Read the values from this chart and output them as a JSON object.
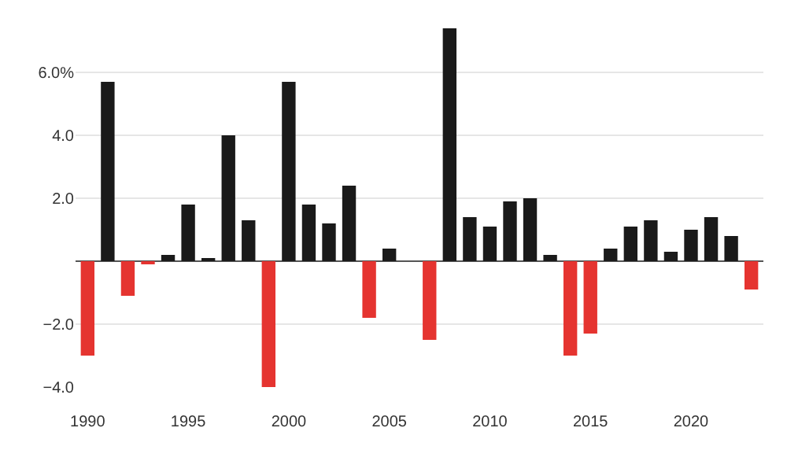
{
  "chart_data": {
    "type": "bar",
    "x": [
      1990,
      1991,
      1992,
      1993,
      1994,
      1995,
      1996,
      1997,
      1998,
      1999,
      2000,
      2001,
      2002,
      2003,
      2004,
      2005,
      2006,
      2007,
      2008,
      2009,
      2010,
      2011,
      2012,
      2013,
      2014,
      2015,
      2016,
      2017,
      2018,
      2019,
      2020,
      2021,
      2022,
      2023
    ],
    "values": [
      -3.0,
      5.7,
      -1.1,
      -0.1,
      0.2,
      1.8,
      0.1,
      4.0,
      1.3,
      -4.0,
      5.7,
      1.8,
      1.2,
      2.4,
      -1.8,
      0.4,
      0,
      -2.5,
      7.4,
      1.4,
      1.1,
      1.9,
      2.0,
      0.2,
      -3.0,
      -2.3,
      0.4,
      1.1,
      1.3,
      0.3,
      1.0,
      1.4,
      0.8,
      -0.9
    ],
    "colors": [
      "#e53430",
      "#1a1a1a",
      "#e53430",
      "#e53430",
      "#1a1a1a",
      "#1a1a1a",
      "#1a1a1a",
      "#1a1a1a",
      "#1a1a1a",
      "#e53430",
      "#1a1a1a",
      "#1a1a1a",
      "#1a1a1a",
      "#1a1a1a",
      "#e53430",
      "#1a1a1a",
      "#1a1a1a",
      "#e53430",
      "#1a1a1a",
      "#1a1a1a",
      "#1a1a1a",
      "#1a1a1a",
      "#1a1a1a",
      "#1a1a1a",
      "#e53430",
      "#e53430",
      "#1a1a1a",
      "#1a1a1a",
      "#1a1a1a",
      "#1a1a1a",
      "#1a1a1a",
      "#1a1a1a",
      "#1a1a1a",
      "#e53430"
    ],
    "xlim": [
      1989.4,
      2023.6
    ],
    "xticks": [
      1990,
      1995,
      2000,
      2005,
      2010,
      2015,
      2020
    ],
    "ylim": [
      -4.0,
      7.5
    ],
    "yticks": [
      {
        "value": -4,
        "label": "−4.0"
      },
      {
        "value": -2,
        "label": "−2.0"
      },
      {
        "value": 2,
        "label": "2.0"
      },
      {
        "value": 4,
        "label": "4.0"
      },
      {
        "value": 6,
        "label": "6.0%"
      }
    ],
    "grid": "y"
  }
}
